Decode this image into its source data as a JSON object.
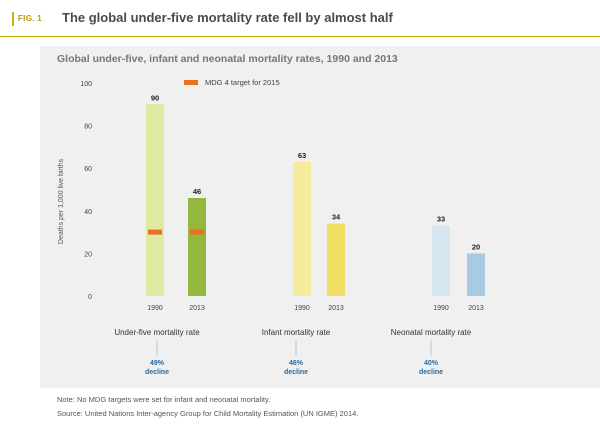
{
  "header": {
    "fig_label": "FIG. 1",
    "title": "The global under-five mortality rate fell by almost half"
  },
  "colors": {
    "accent": "#c9b200",
    "under5_1990": "#dfe9a2",
    "under5_2013": "#93b83e",
    "infant_1990": "#f6ec9e",
    "infant_2013": "#f0dd64",
    "neonatal_1990": "#d6e6f1",
    "neonatal_2013": "#a7cbe3",
    "target_marker": "#e8701e",
    "decline_text": "#2d6a9a"
  },
  "chart_data": {
    "type": "bar",
    "title": "Global under-five, infant and neonatal mortality rates, 1990 and 2013",
    "ylabel": "Deaths per 1,000 live births",
    "ylim": [
      0,
      100
    ],
    "yticks": [
      0,
      20,
      40,
      60,
      80,
      100
    ],
    "grid": false,
    "legend": {
      "label": "MDG 4 target for 2015",
      "placement": "top"
    },
    "groups": [
      {
        "name": "Under-five mortality rate",
        "years": [
          "1990",
          "2013"
        ],
        "values": [
          90,
          46
        ],
        "target": 30,
        "decline_pct": "49%",
        "decline_word": "decline"
      },
      {
        "name": "Infant mortality rate",
        "years": [
          "1990",
          "2013"
        ],
        "values": [
          63,
          34
        ],
        "decline_pct": "46%",
        "decline_word": "decline"
      },
      {
        "name": "Neonatal mortality rate",
        "years": [
          "1990",
          "2013"
        ],
        "values": [
          33,
          20
        ],
        "decline_pct": "40%",
        "decline_word": "decline"
      }
    ]
  },
  "footer": {
    "note": "Note: No MDG targets were set for infant and neonatal mortality.",
    "source": "Source: United Nations Inter-agency Group for Child Mortality Estimation (UN IGME) 2014."
  }
}
